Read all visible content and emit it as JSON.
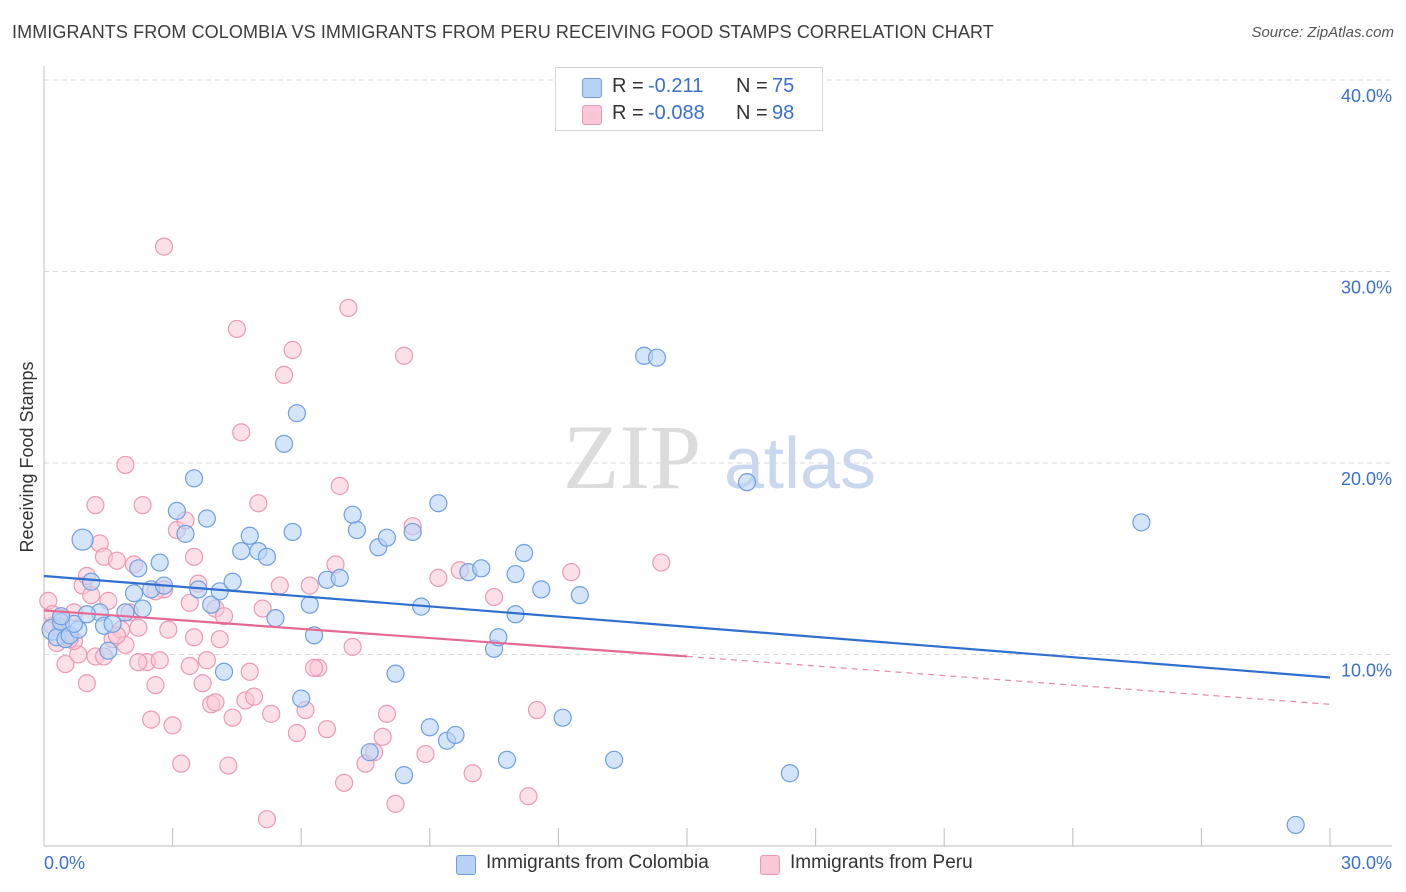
{
  "title": "IMMIGRANTS FROM COLOMBIA VS IMMIGRANTS FROM PERU RECEIVING FOOD STAMPS CORRELATION CHART",
  "source": "Source: ZipAtlas.com",
  "watermark": {
    "zip": "ZIP",
    "atlas": "atlas"
  },
  "legend_top": [
    {
      "r_label": "R =",
      "r_value": "-0.211",
      "n_label": "N =",
      "n_value": "75"
    },
    {
      "r_label": "R =",
      "r_value": "-0.088",
      "n_label": "N =",
      "n_value": "98"
    }
  ],
  "legend_bottom": [
    {
      "label": "Immigrants from Colombia"
    },
    {
      "label": "Immigrants from Peru"
    }
  ],
  "colors": {
    "colombia_fill": "#b8d3f5",
    "colombia_stroke": "#6f9fe0",
    "colombia_line": "#2f6fd0",
    "peru_fill": "#f9c7d6",
    "peru_stroke": "#ec9ab4",
    "peru_line": "#e46a93",
    "tick_label": "#3a6fcc",
    "grid": "#dadada"
  },
  "chart_data": {
    "type": "scatter",
    "title": "IMMIGRANTS FROM COLOMBIA VS IMMIGRANTS FROM PERU RECEIVING FOOD STAMPS CORRELATION CHART",
    "xlabel": "",
    "ylabel": "Receiving Food Stamps",
    "xlim": [
      0,
      30
    ],
    "ylim": [
      0,
      40
    ],
    "x_tick_labels": [
      "0.0%",
      "30.0%"
    ],
    "y_ticks": [
      10,
      20,
      30,
      40
    ],
    "y_tick_labels": [
      "10.0%",
      "20.0%",
      "30.0%",
      "40.0%"
    ],
    "grid": true,
    "legend_position": "top-center",
    "series": [
      {
        "name": "Immigrants from Colombia",
        "r": -0.211,
        "n": 75,
        "trend": {
          "x": [
            0,
            30
          ],
          "y": [
            14.1,
            8.8
          ]
        },
        "points": [
          [
            0.2,
            11.3
          ],
          [
            0.3,
            10.9
          ],
          [
            0.4,
            11.7
          ],
          [
            0.5,
            10.8
          ],
          [
            0.6,
            11.0
          ],
          [
            0.8,
            11.3
          ],
          [
            0.9,
            16.0
          ],
          [
            1.1,
            13.8
          ],
          [
            1.3,
            12.2
          ],
          [
            1.4,
            11.5
          ],
          [
            1.6,
            11.6
          ],
          [
            1.9,
            12.2
          ],
          [
            2.2,
            14.5
          ],
          [
            2.5,
            13.4
          ],
          [
            2.8,
            13.6
          ],
          [
            3.1,
            17.5
          ],
          [
            3.3,
            16.3
          ],
          [
            3.5,
            19.2
          ],
          [
            3.8,
            17.1
          ],
          [
            3.9,
            12.6
          ],
          [
            4.1,
            13.3
          ],
          [
            4.2,
            9.1
          ],
          [
            4.6,
            15.4
          ],
          [
            4.8,
            16.2
          ],
          [
            5.0,
            15.4
          ],
          [
            5.2,
            15.1
          ],
          [
            5.4,
            11.9
          ],
          [
            5.6,
            21.0
          ],
          [
            5.8,
            16.4
          ],
          [
            6.0,
            7.7
          ],
          [
            6.3,
            11.0
          ],
          [
            6.6,
            13.9
          ],
          [
            6.9,
            14.0
          ],
          [
            7.3,
            16.5
          ],
          [
            7.6,
            4.9
          ],
          [
            7.8,
            15.6
          ],
          [
            8.0,
            16.1
          ],
          [
            8.2,
            9.0
          ],
          [
            8.4,
            3.7
          ],
          [
            8.6,
            16.4
          ],
          [
            9.0,
            6.2
          ],
          [
            9.2,
            17.9
          ],
          [
            9.4,
            5.5
          ],
          [
            9.6,
            5.8
          ],
          [
            9.9,
            14.3
          ],
          [
            10.2,
            14.5
          ],
          [
            10.5,
            10.3
          ],
          [
            10.8,
            4.5
          ],
          [
            11.0,
            14.2
          ],
          [
            11.2,
            15.3
          ],
          [
            11.6,
            13.4
          ],
          [
            12.1,
            6.7
          ],
          [
            13.3,
            4.5
          ],
          [
            14.0,
            25.6
          ],
          [
            14.3,
            25.5
          ],
          [
            16.4,
            19.0
          ],
          [
            17.4,
            3.8
          ],
          [
            25.6,
            16.9
          ],
          [
            29.2,
            1.1
          ],
          [
            0.7,
            11.6
          ],
          [
            1.5,
            10.2
          ],
          [
            2.1,
            13.2
          ],
          [
            2.7,
            14.8
          ],
          [
            3.6,
            13.4
          ],
          [
            4.4,
            13.8
          ],
          [
            6.2,
            12.6
          ],
          [
            7.2,
            17.3
          ],
          [
            8.8,
            12.5
          ],
          [
            10.6,
            10.9
          ],
          [
            11.0,
            12.1
          ],
          [
            12.5,
            13.1
          ],
          [
            5.9,
            22.6
          ],
          [
            2.3,
            12.4
          ],
          [
            1.0,
            12.1
          ],
          [
            0.4,
            12.0
          ]
        ]
      },
      {
        "name": "Immigrants from Peru",
        "r": -0.088,
        "n": 98,
        "trend": {
          "x": [
            0,
            15
          ],
          "y": [
            12.3,
            9.9
          ]
        },
        "trend_extension": {
          "x": [
            15,
            30
          ],
          "y": [
            9.9,
            7.4
          ]
        },
        "points": [
          [
            0.1,
            12.8
          ],
          [
            0.2,
            11.5
          ],
          [
            0.3,
            10.6
          ],
          [
            0.4,
            11.9
          ],
          [
            0.5,
            9.5
          ],
          [
            0.6,
            11.0
          ],
          [
            0.7,
            12.2
          ],
          [
            0.8,
            10.0
          ],
          [
            0.9,
            13.6
          ],
          [
            1.0,
            8.5
          ],
          [
            1.1,
            13.1
          ],
          [
            1.2,
            9.9
          ],
          [
            1.3,
            15.8
          ],
          [
            1.4,
            15.1
          ],
          [
            1.5,
            12.8
          ],
          [
            1.6,
            10.8
          ],
          [
            1.7,
            14.9
          ],
          [
            1.8,
            11.3
          ],
          [
            1.9,
            10.5
          ],
          [
            2.0,
            12.2
          ],
          [
            2.1,
            14.7
          ],
          [
            2.2,
            11.4
          ],
          [
            2.3,
            17.8
          ],
          [
            2.4,
            9.6
          ],
          [
            2.5,
            6.6
          ],
          [
            2.6,
            8.4
          ],
          [
            2.7,
            9.7
          ],
          [
            2.8,
            13.4
          ],
          [
            2.9,
            11.3
          ],
          [
            3.0,
            6.3
          ],
          [
            3.1,
            16.5
          ],
          [
            3.2,
            4.3
          ],
          [
            3.3,
            17.0
          ],
          [
            3.4,
            9.4
          ],
          [
            3.5,
            10.9
          ],
          [
            3.6,
            13.7
          ],
          [
            3.7,
            8.5
          ],
          [
            3.8,
            9.7
          ],
          [
            3.9,
            7.4
          ],
          [
            4.0,
            12.4
          ],
          [
            4.1,
            10.8
          ],
          [
            4.2,
            12.0
          ],
          [
            4.3,
            4.2
          ],
          [
            4.4,
            6.7
          ],
          [
            4.5,
            27.0
          ],
          [
            4.6,
            21.6
          ],
          [
            4.7,
            7.6
          ],
          [
            4.8,
            9.1
          ],
          [
            4.9,
            7.8
          ],
          [
            5.0,
            17.9
          ],
          [
            5.2,
            1.4
          ],
          [
            5.3,
            6.9
          ],
          [
            5.5,
            13.6
          ],
          [
            5.6,
            24.6
          ],
          [
            5.8,
            25.9
          ],
          [
            5.9,
            5.9
          ],
          [
            6.1,
            7.1
          ],
          [
            6.2,
            13.6
          ],
          [
            6.4,
            9.3
          ],
          [
            6.6,
            6.1
          ],
          [
            6.8,
            14.7
          ],
          [
            6.9,
            18.8
          ],
          [
            7.0,
            3.3
          ],
          [
            7.1,
            28.1
          ],
          [
            7.2,
            10.4
          ],
          [
            7.5,
            4.3
          ],
          [
            7.7,
            4.9
          ],
          [
            7.9,
            5.7
          ],
          [
            8.0,
            6.9
          ],
          [
            8.2,
            2.2
          ],
          [
            8.4,
            25.6
          ],
          [
            8.6,
            16.7
          ],
          [
            8.9,
            4.8
          ],
          [
            9.2,
            14.0
          ],
          [
            9.7,
            14.4
          ],
          [
            10.0,
            3.8
          ],
          [
            10.5,
            13.0
          ],
          [
            11.3,
            2.6
          ],
          [
            11.5,
            7.1
          ],
          [
            12.3,
            14.3
          ],
          [
            14.4,
            14.8
          ],
          [
            2.8,
            31.3
          ],
          [
            1.9,
            19.9
          ],
          [
            1.2,
            17.8
          ],
          [
            3.4,
            12.7
          ],
          [
            4.0,
            7.5
          ],
          [
            2.2,
            9.6
          ],
          [
            0.7,
            10.7
          ],
          [
            1.7,
            11.0
          ],
          [
            2.6,
            13.3
          ],
          [
            3.5,
            15.1
          ],
          [
            0.4,
            11.4
          ],
          [
            5.1,
            12.4
          ],
          [
            6.3,
            9.3
          ],
          [
            0.2,
            12.1
          ],
          [
            1.0,
            14.1
          ],
          [
            0.6,
            10.8
          ],
          [
            1.4,
            9.9
          ]
        ]
      }
    ]
  }
}
